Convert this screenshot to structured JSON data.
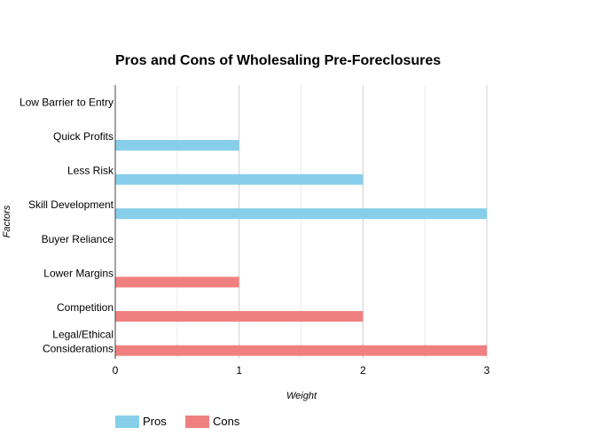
{
  "chart_data": {
    "type": "bar",
    "orientation": "horizontal",
    "title": "Pros and Cons of Wholesaling Pre-Foreclosures",
    "xlabel": "Weight",
    "ylabel": "Factors",
    "xlim": [
      0,
      3
    ],
    "x_ticks": [
      "0",
      "1",
      "2",
      "3"
    ],
    "grid": true,
    "legend_position": "bottom-left",
    "categories": [
      "Low Barrier to Entry",
      "Quick Profits",
      "Less Risk",
      "Skill Development",
      "Buyer Reliance",
      "Lower Margins",
      "Competition",
      "Legal/Ethical Considerations"
    ],
    "series": [
      {
        "name": "Pros",
        "color": "#87CEEB",
        "values": [
          0,
          1,
          2,
          3,
          0,
          0,
          0,
          0
        ]
      },
      {
        "name": "Cons",
        "color": "#F08080",
        "values": [
          0,
          0,
          0,
          0,
          0,
          1,
          2,
          3
        ]
      }
    ]
  }
}
